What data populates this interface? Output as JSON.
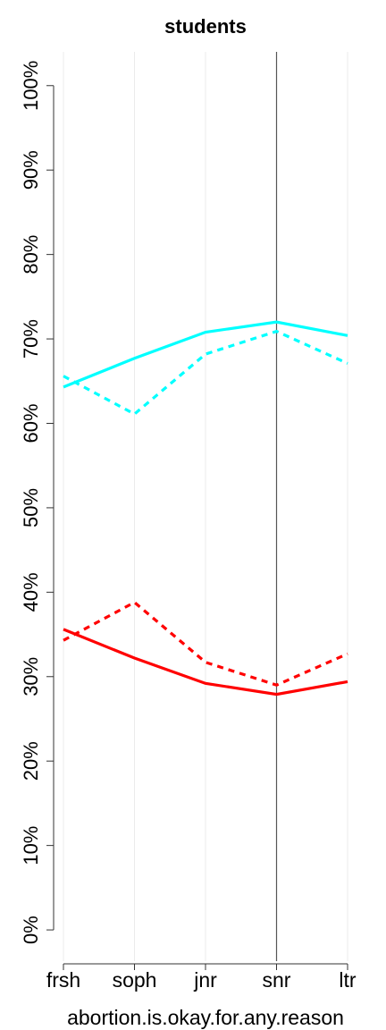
{
  "chart_data": {
    "type": "line",
    "title": "students",
    "x_label": "abortion.is.okay.for.any.reason",
    "categories": [
      "frsh",
      "soph",
      "jnr",
      "snr",
      "ltr"
    ],
    "series": [
      {
        "color": "#00ffff",
        "dash": false,
        "values": [
          64.3,
          67.7,
          70.8,
          72.0,
          70.4
        ]
      },
      {
        "color": "#00ffff",
        "dash": true,
        "values": [
          65.6,
          61.1,
          68.2,
          70.9,
          67.1
        ]
      },
      {
        "color": "#ff0000",
        "dash": false,
        "values": [
          35.6,
          32.2,
          29.2,
          27.9,
          29.4
        ]
      },
      {
        "color": "#ff0000",
        "dash": true,
        "values": [
          34.3,
          38.8,
          31.7,
          29.0,
          32.7
        ]
      }
    ],
    "ylim": [
      -3.7,
      104
    ],
    "yticks": [
      {
        "value": 0,
        "label": "0%"
      },
      {
        "value": 10,
        "label": "10%"
      },
      {
        "value": 20,
        "label": "20%"
      },
      {
        "value": 30,
        "label": "30%"
      },
      {
        "value": 40,
        "label": "40%"
      },
      {
        "value": 50,
        "label": "50%"
      },
      {
        "value": 60,
        "label": "60%"
      },
      {
        "value": 70,
        "label": "70%"
      },
      {
        "value": 80,
        "label": "80%"
      },
      {
        "value": 90,
        "label": "90%"
      },
      {
        "value": 100,
        "label": "100%"
      }
    ],
    "grid": true,
    "marker_category": "snr"
  }
}
